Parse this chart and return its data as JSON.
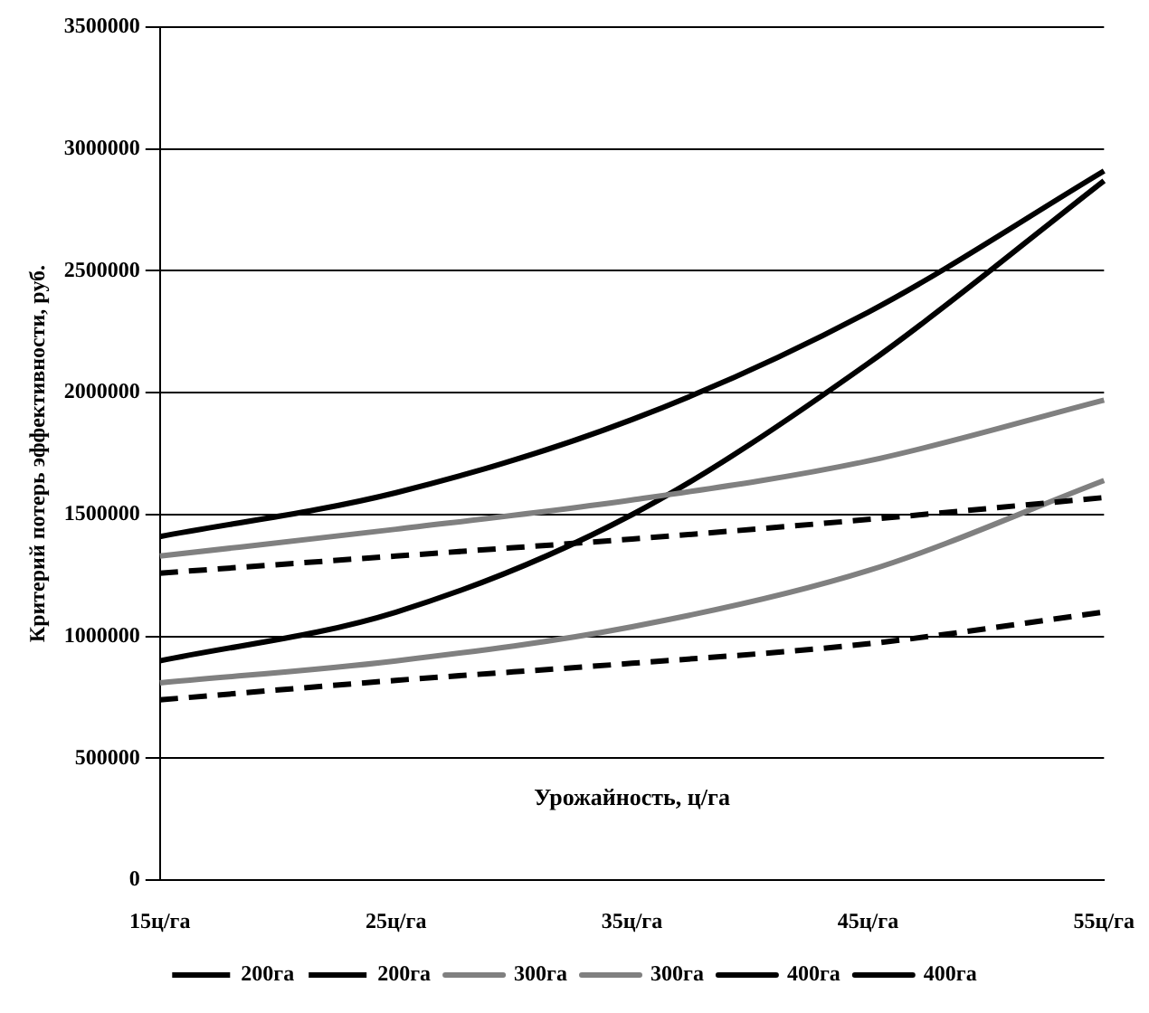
{
  "chart_data": {
    "type": "line",
    "xlabel": "Урожайность, ц/га",
    "ylabel": "Критерий потерь эффективности, руб.",
    "categories": [
      "15ц/га",
      "25ц/га",
      "35ц/га",
      "45ц/га",
      "55ц/га"
    ],
    "series": [
      {
        "name": "200га",
        "color": "#000000",
        "line_style": "dashed",
        "values": [
          1260000,
          1330000,
          1400000,
          1480000,
          1570000
        ]
      },
      {
        "name": "200га",
        "color": "#000000",
        "line_style": "dashed",
        "values": [
          740000,
          820000,
          890000,
          970000,
          1100000
        ]
      },
      {
        "name": "300га",
        "color": "#808080",
        "line_style": "solid",
        "values": [
          1330000,
          1440000,
          1560000,
          1720000,
          1970000
        ]
      },
      {
        "name": "300га",
        "color": "#808080",
        "line_style": "solid",
        "values": [
          810000,
          900000,
          1040000,
          1270000,
          1640000
        ]
      },
      {
        "name": "400га",
        "color": "#000000",
        "line_style": "solid",
        "values": [
          1410000,
          1590000,
          1890000,
          2330000,
          2910000
        ]
      },
      {
        "name": "400га",
        "color": "#000000",
        "line_style": "solid",
        "values": [
          900000,
          1100000,
          1500000,
          2120000,
          2870000
        ]
      }
    ],
    "ylim": [
      0,
      3500000
    ],
    "yticks": [
      0,
      500000,
      1000000,
      1500000,
      2000000,
      2500000,
      3000000,
      3500000
    ],
    "grid": "y",
    "legend": "bottom",
    "marker": "none"
  }
}
